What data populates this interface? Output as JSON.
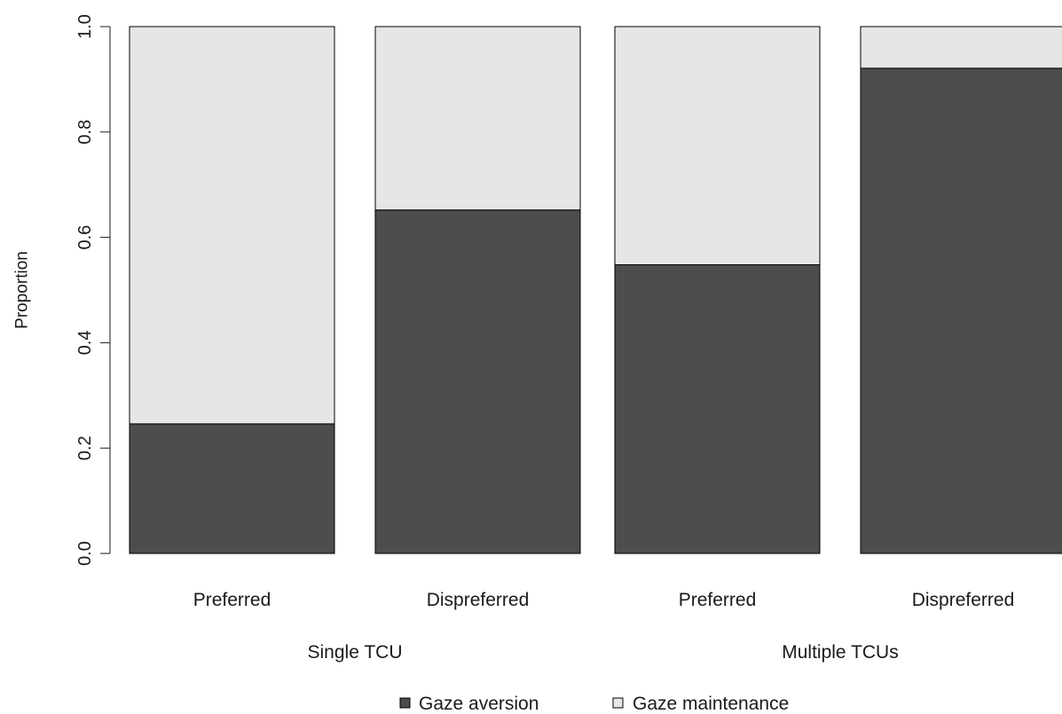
{
  "chart_data": {
    "type": "bar",
    "stacked": true,
    "ylabel": "Proportion",
    "ylim": [
      0,
      1
    ],
    "yticks": [
      "0.0",
      "0.2",
      "0.4",
      "0.6",
      "0.8",
      "1.0"
    ],
    "categories": [
      "Preferred",
      "Dispreferred",
      "Preferred",
      "Dispreferred"
    ],
    "groups": [
      {
        "label": "Single TCU",
        "categories": [
          0,
          1
        ]
      },
      {
        "label": "Multiple TCUs",
        "categories": [
          2,
          3
        ]
      }
    ],
    "series": [
      {
        "name": "Gaze aversion",
        "color": "#4d4d4d",
        "values": [
          0.246,
          0.652,
          0.548,
          0.921
        ]
      },
      {
        "name": "Gaze maintenance",
        "color": "#e6e6e6",
        "values": [
          0.754,
          0.348,
          0.452,
          0.079
        ]
      }
    ],
    "legend_position": "bottom-center",
    "grid": false
  }
}
